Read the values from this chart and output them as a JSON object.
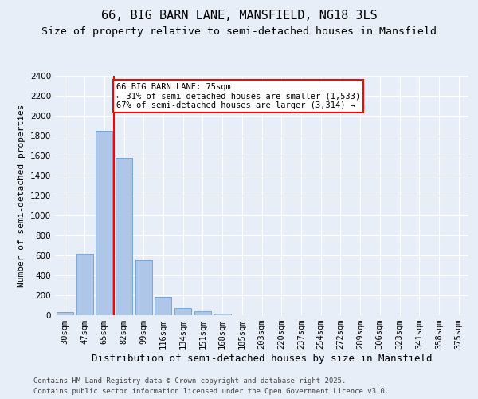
{
  "title1": "66, BIG BARN LANE, MANSFIELD, NG18 3LS",
  "title2": "Size of property relative to semi-detached houses in Mansfield",
  "xlabel": "Distribution of semi-detached houses by size in Mansfield",
  "ylabel": "Number of semi-detached properties",
  "categories": [
    "30sqm",
    "47sqm",
    "65sqm",
    "82sqm",
    "99sqm",
    "116sqm",
    "134sqm",
    "151sqm",
    "168sqm",
    "185sqm",
    "203sqm",
    "220sqm",
    "237sqm",
    "254sqm",
    "272sqm",
    "289sqm",
    "306sqm",
    "323sqm",
    "341sqm",
    "358sqm",
    "375sqm"
  ],
  "values": [
    35,
    620,
    1850,
    1580,
    550,
    185,
    70,
    40,
    20,
    0,
    0,
    0,
    0,
    0,
    0,
    0,
    0,
    0,
    0,
    0,
    0
  ],
  "bar_color": "#aec6e8",
  "bar_edge_color": "#5a8fc4",
  "vline_color": "red",
  "annotation_text": "66 BIG BARN LANE: 75sqm\n← 31% of semi-detached houses are smaller (1,533)\n67% of semi-detached houses are larger (3,314) →",
  "annotation_box_color": "white",
  "annotation_box_edge": "red",
  "ylim": [
    0,
    2400
  ],
  "yticks": [
    0,
    200,
    400,
    600,
    800,
    1000,
    1200,
    1400,
    1600,
    1800,
    2000,
    2200,
    2400
  ],
  "bg_color": "#e8eef7",
  "plot_bg_color": "#e8eef7",
  "footer1": "Contains HM Land Registry data © Crown copyright and database right 2025.",
  "footer2": "Contains public sector information licensed under the Open Government Licence v3.0.",
  "title1_fontsize": 11,
  "title2_fontsize": 9.5,
  "tick_fontsize": 7.5,
  "xlabel_fontsize": 9,
  "ylabel_fontsize": 8,
  "footer_fontsize": 6.5,
  "annot_fontsize": 7.5
}
